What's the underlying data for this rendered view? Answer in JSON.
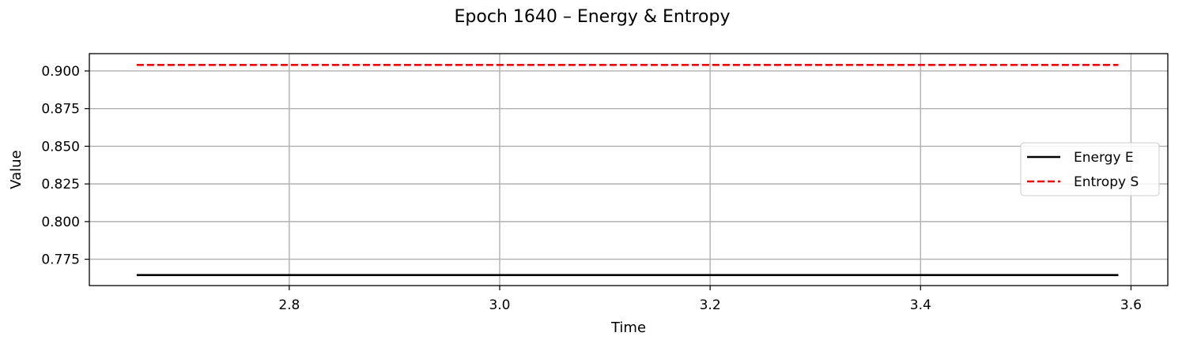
{
  "chart_data": {
    "type": "line",
    "title": "Epoch 1640 – Energy & Entropy",
    "xlabel": "Time",
    "ylabel": "Value",
    "xlim": [
      2.61,
      3.635
    ],
    "ylim": [
      0.7575,
      0.9115
    ],
    "xticks": [
      2.8,
      3.0,
      3.2,
      3.4,
      3.6
    ],
    "xtick_labels": [
      "2.8",
      "3.0",
      "3.2",
      "3.4",
      "3.6"
    ],
    "yticks": [
      0.775,
      0.8,
      0.825,
      0.85,
      0.875,
      0.9
    ],
    "ytick_labels": [
      "0.775",
      "0.800",
      "0.825",
      "0.850",
      "0.875",
      "0.900"
    ],
    "grid": true,
    "legend_position": "center-right",
    "series": [
      {
        "name": "Energy E",
        "color": "#000000",
        "style": "solid",
        "x": [
          2.655,
          3.588
        ],
        "y": [
          0.7645,
          0.7645
        ]
      },
      {
        "name": "Entropy S",
        "color": "#ff0000",
        "style": "dashed",
        "x": [
          2.655,
          3.588
        ],
        "y": [
          0.904,
          0.904
        ]
      }
    ]
  }
}
